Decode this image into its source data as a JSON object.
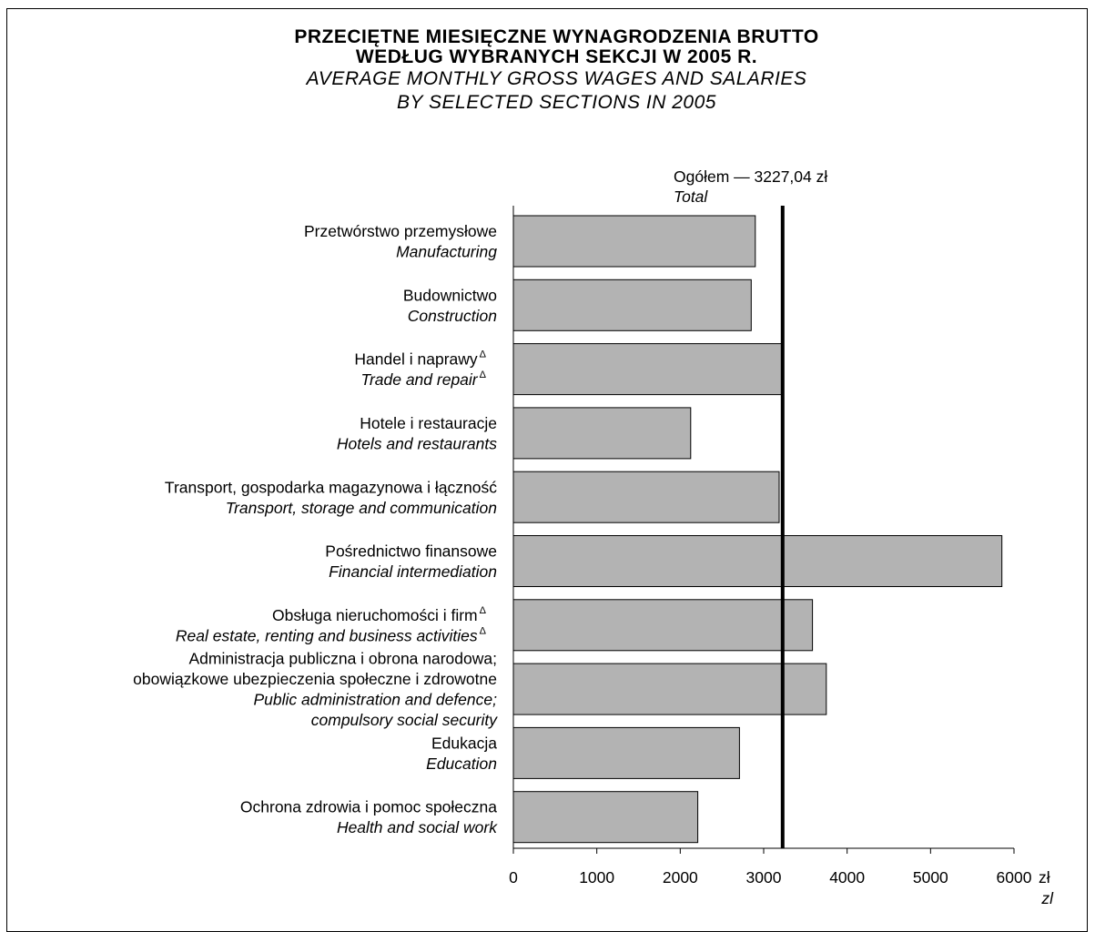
{
  "header": {
    "title_pl_line1": "PRZECIĘTNE MIESIĘCZNE WYNAGRODZENIA BRUTTO",
    "title_pl_line2": "WEDŁUG WYBRANYCH SEKCJI W 2005 R.",
    "title_en_line1": "AVERAGE MONTHLY GROSS WAGES AND SALARIES",
    "title_en_line2": "BY SELECTED SECTIONS IN 2005"
  },
  "chart_data": {
    "type": "bar",
    "orientation": "horizontal",
    "categories": [
      {
        "pl": [
          "Przetwórstwo przemysłowe"
        ],
        "en": [
          "Manufacturing"
        ],
        "note": false
      },
      {
        "pl": [
          "Budownictwo"
        ],
        "en": [
          "Construction"
        ],
        "note": false
      },
      {
        "pl": [
          "Handel i naprawy"
        ],
        "en": [
          "Trade and repair"
        ],
        "note": true
      },
      {
        "pl": [
          "Hotele i restauracje"
        ],
        "en": [
          "Hotels and restaurants"
        ],
        "note": false
      },
      {
        "pl": [
          "Transport, gospodarka magazynowa i łączność"
        ],
        "en": [
          "Transport, storage and communication"
        ],
        "note": false
      },
      {
        "pl": [
          "Pośrednictwo finansowe"
        ],
        "en": [
          "Financial intermediation"
        ],
        "note": false
      },
      {
        "pl": [
          "Obsługa nieruchomości i firm"
        ],
        "en": [
          "Real estate, renting and business activities"
        ],
        "note": true
      },
      {
        "pl": [
          "Administracja publiczna i obrona narodowa;",
          "obowiązkowe ubezpieczenia społeczne i zdrowotne"
        ],
        "en": [
          "Public administration and defence;",
          "compulsory social security"
        ],
        "note": false
      },
      {
        "pl": [
          "Edukacja"
        ],
        "en": [
          "Education"
        ],
        "note": false
      },
      {
        "pl": [
          "Ochrona zdrowia i pomoc społeczna"
        ],
        "en": [
          "Health and social work"
        ],
        "note": false
      }
    ],
    "values": [
      2900,
      2850,
      3230,
      2125,
      3185,
      5855,
      3585,
      3750,
      2710,
      2210
    ],
    "note_symbol": "Δ",
    "reference_line": {
      "value": 3227.04,
      "label_pl": "Ogółem — 3227,04 zł",
      "label_en": "Total"
    },
    "xlim": [
      0,
      6000
    ],
    "xticks": [
      0,
      1000,
      2000,
      3000,
      4000,
      5000,
      6000
    ],
    "xtick_labels": [
      "0",
      "1000",
      "2000",
      "3000",
      "4000",
      "5000",
      "6000"
    ],
    "xunit_pl": "zł",
    "xunit_en": "zl",
    "bar_color": "#b3b3b3",
    "grid": false
  }
}
